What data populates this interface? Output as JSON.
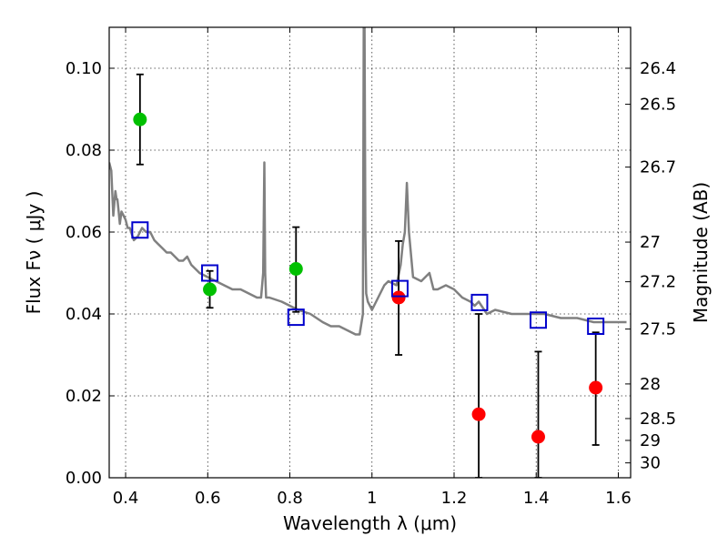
{
  "chart_data": {
    "type": "scatter",
    "title": "",
    "xlabel": "Wavelength  λ (μm)",
    "ylabel": "Flux  Fν  ( μJy )",
    "y2label": "Magnitude (AB)",
    "xlim": [
      0.36,
      1.63
    ],
    "ylim": [
      0.0,
      0.11
    ],
    "grid": true,
    "x_ticks": [
      0.4,
      0.6,
      0.8,
      1.0,
      1.2,
      1.4,
      1.6
    ],
    "x_tick_labels": [
      "0.4",
      "0.6",
      "0.8",
      "1",
      "1.2",
      "1.4",
      "1.6"
    ],
    "y_ticks": [
      0.0,
      0.02,
      0.04,
      0.06,
      0.08,
      0.1
    ],
    "y_tick_labels": [
      "0.00",
      "0.02",
      "0.04",
      "0.06",
      "0.08",
      "0.10"
    ],
    "y2_ticks": [
      "26.4",
      "26.5",
      "26.7",
      "27",
      "27.2",
      "27.5",
      "28",
      "28.5",
      "29",
      "30"
    ],
    "colors": {
      "model_spectrum": "#808080",
      "green_points": "#00c000",
      "red_points": "#ff0000",
      "squares": "#0000cc",
      "errorbars": "#000000"
    },
    "series": [
      {
        "kind": "line",
        "x": [
          0.36,
          0.365,
          0.37,
          0.375,
          0.378,
          0.38,
          0.383,
          0.386,
          0.39,
          0.395,
          0.4,
          0.405,
          0.41,
          0.42,
          0.43,
          0.44,
          0.45,
          0.46,
          0.47,
          0.48,
          0.49,
          0.5,
          0.51,
          0.52,
          0.53,
          0.54,
          0.55,
          0.56,
          0.58,
          0.6,
          0.62,
          0.64,
          0.66,
          0.68,
          0.7,
          0.72,
          0.73,
          0.735,
          0.738,
          0.74,
          0.742,
          0.745,
          0.75,
          0.78,
          0.8,
          0.82,
          0.85,
          0.88,
          0.9,
          0.92,
          0.94,
          0.96,
          0.97,
          0.978,
          0.98,
          0.982,
          0.984,
          0.986,
          0.99,
          1.0,
          1.02,
          1.03,
          1.04,
          1.06,
          1.07,
          1.075,
          1.08,
          1.085,
          1.09,
          1.1,
          1.12,
          1.14,
          1.15,
          1.16,
          1.18,
          1.2,
          1.22,
          1.24,
          1.25,
          1.26,
          1.28,
          1.3,
          1.34,
          1.38,
          1.42,
          1.46,
          1.5,
          1.54,
          1.58,
          1.62
        ],
        "y": [
          0.077,
          0.075,
          0.064,
          0.07,
          0.068,
          0.068,
          0.065,
          0.062,
          0.065,
          0.064,
          0.063,
          0.061,
          0.061,
          0.058,
          0.059,
          0.061,
          0.06,
          0.06,
          0.058,
          0.057,
          0.056,
          0.055,
          0.055,
          0.054,
          0.053,
          0.053,
          0.054,
          0.052,
          0.05,
          0.049,
          0.048,
          0.047,
          0.046,
          0.046,
          0.045,
          0.044,
          0.044,
          0.05,
          0.077,
          0.05,
          0.044,
          0.044,
          0.044,
          0.043,
          0.042,
          0.041,
          0.04,
          0.038,
          0.037,
          0.037,
          0.036,
          0.035,
          0.035,
          0.04,
          0.11,
          0.11,
          0.06,
          0.045,
          0.043,
          0.041,
          0.045,
          0.047,
          0.048,
          0.047,
          0.052,
          0.057,
          0.06,
          0.072,
          0.06,
          0.049,
          0.048,
          0.05,
          0.046,
          0.046,
          0.047,
          0.046,
          0.044,
          0.043,
          0.042,
          0.043,
          0.04,
          0.041,
          0.04,
          0.04,
          0.04,
          0.039,
          0.039,
          0.038,
          0.038,
          0.038
        ]
      },
      {
        "kind": "scatter",
        "marker": "circle",
        "color": "green",
        "x": [
          0.435,
          0.605,
          0.815
        ],
        "y": [
          0.0875,
          0.046,
          0.051
        ],
        "yerr_low": [
          0.0765,
          0.0415,
          0.0405
        ],
        "yerr_high": [
          0.0985,
          0.0505,
          0.0612
        ]
      },
      {
        "kind": "scatter",
        "marker": "circle",
        "color": "red",
        "x": [
          1.065,
          1.26,
          1.405,
          1.545
        ],
        "y": [
          0.044,
          0.0155,
          0.01,
          0.022
        ],
        "yerr_low": [
          0.03,
          0.0,
          0.0,
          0.008
        ],
        "yerr_high": [
          0.0578,
          0.04,
          0.0308,
          0.0355
        ]
      },
      {
        "kind": "scatter",
        "marker": "open-square",
        "color": "blue",
        "x": [
          0.435,
          0.605,
          0.815,
          1.068,
          1.262,
          1.405,
          1.545
        ],
        "y": [
          0.0605,
          0.05,
          0.0392,
          0.0462,
          0.0428,
          0.0385,
          0.037
        ]
      }
    ]
  }
}
